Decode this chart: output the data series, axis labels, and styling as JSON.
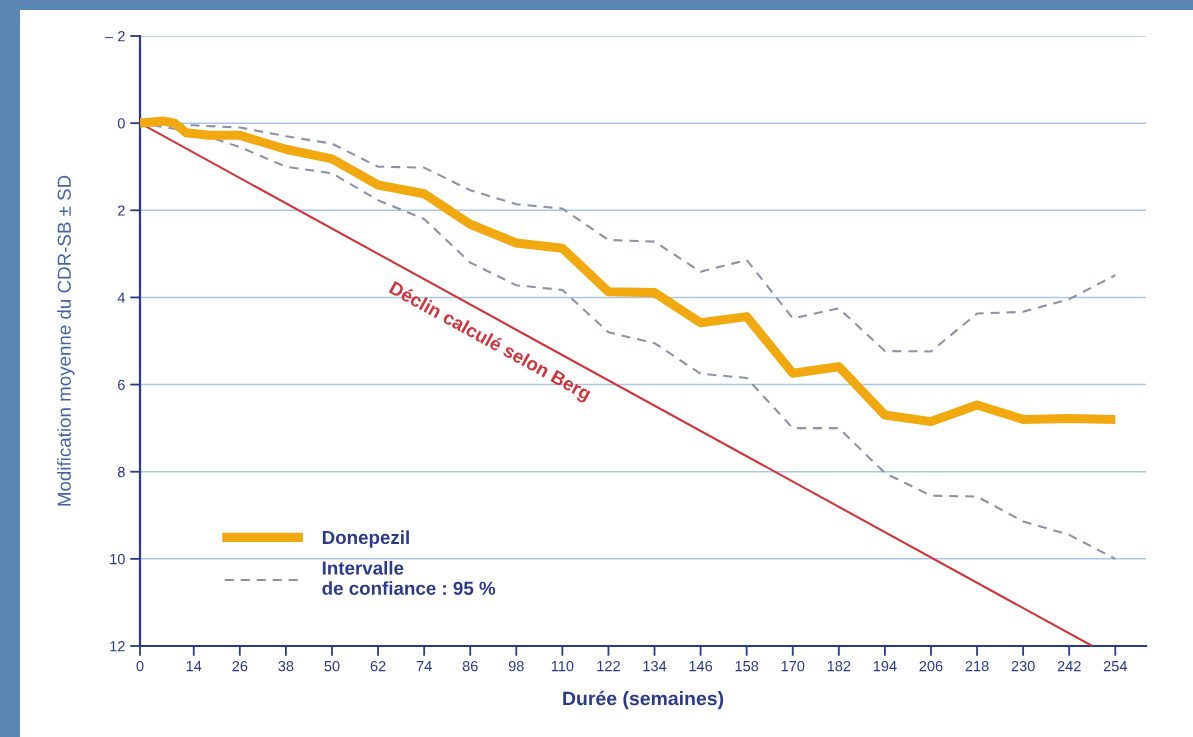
{
  "chart_data": {
    "type": "line",
    "xlabel": "Durée (semaines)",
    "ylabel": "Modification moyenne du CDR-SB ± SD",
    "xlim": [
      0,
      262
    ],
    "xticks": [
      0,
      14,
      26,
      38,
      50,
      62,
      74,
      86,
      98,
      110,
      122,
      134,
      146,
      158,
      170,
      182,
      194,
      206,
      218,
      230,
      242,
      254
    ],
    "ylim": [
      12,
      -2
    ],
    "yticks": [
      {
        "value": -2,
        "label": "– 2"
      },
      0,
      2,
      4,
      6,
      8,
      10,
      12
    ],
    "grid": "y",
    "legend": "bottom left",
    "annotations": [
      {
        "text": "Déclin calculé selon Berg",
        "x": 94,
        "y": 4.55
      }
    ],
    "series": [
      {
        "name": "Donepezil",
        "color": "#f2a90f",
        "line_style": "solid",
        "x": [
          0,
          6,
          9,
          12,
          18,
          26,
          38,
          50,
          62,
          74,
          86,
          98,
          110,
          122,
          134,
          146,
          158,
          170,
          182,
          194,
          206,
          218,
          230,
          242,
          254
        ],
        "values": [
          0,
          -0.05,
          0,
          0.22,
          0.28,
          0.28,
          0.6,
          0.82,
          1.42,
          1.62,
          2.32,
          2.75,
          2.87,
          3.87,
          3.89,
          4.58,
          4.44,
          5.74,
          5.59,
          6.7,
          6.85,
          6.47,
          6.8,
          6.78,
          6.8
        ]
      },
      {
        "name": "Intervalle\nde confiance : 95 %",
        "color": "#8c93a8",
        "line_style": "dashed",
        "x": [
          0,
          14,
          26,
          38,
          50,
          62,
          74,
          86,
          98,
          110,
          122,
          134,
          146,
          158,
          170,
          182,
          194,
          206,
          218,
          230,
          242,
          254
        ],
        "values": [
          0,
          0.05,
          0.1,
          0.3,
          0.47,
          1.0,
          1.02,
          1.54,
          1.86,
          1.96,
          2.68,
          2.72,
          3.41,
          3.14,
          4.48,
          4.25,
          5.23,
          5.24,
          4.37,
          4.33,
          4.04,
          3.49
        ]
      },
      {
        "color": "#8c93a8",
        "line_style": "dashed",
        "x": [
          0,
          14,
          26,
          38,
          50,
          62,
          74,
          86,
          98,
          110,
          122,
          134,
          146,
          158,
          170,
          182,
          194,
          206,
          218,
          230,
          242,
          254
        ],
        "values": [
          0,
          0.2,
          0.55,
          1.0,
          1.15,
          1.77,
          2.2,
          3.2,
          3.72,
          3.83,
          4.8,
          5.05,
          5.75,
          5.85,
          7.0,
          7.0,
          8.03,
          8.55,
          8.57,
          9.14,
          9.45,
          10.0
        ]
      },
      {
        "color": "#d2343c",
        "line_style": "solid",
        "x": [
          0,
          248
        ],
        "values": [
          0,
          12
        ]
      }
    ]
  }
}
